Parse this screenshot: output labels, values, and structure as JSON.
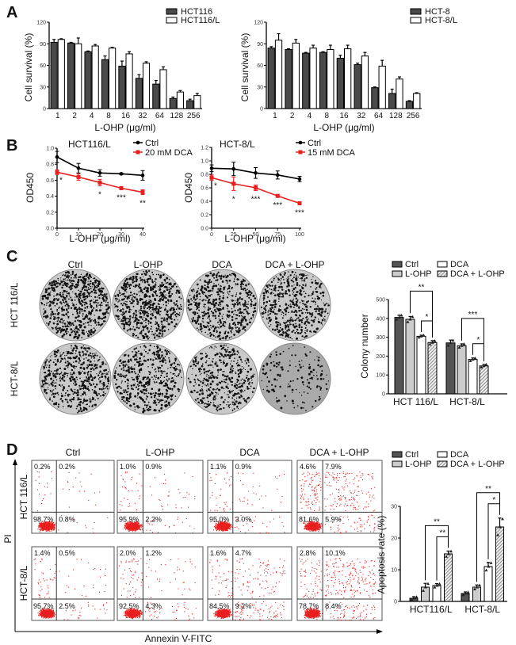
{
  "panel_labels": [
    "A",
    "B",
    "C",
    "D"
  ],
  "chart_data": [
    {
      "id": "A-left",
      "type": "bar",
      "categories": [
        "1",
        "2",
        "4",
        "8",
        "16",
        "32",
        "64",
        "128",
        "256"
      ],
      "series": [
        {
          "name": "HCT116",
          "values": [
            92,
            91,
            79,
            68,
            59,
            42,
            34,
            14,
            11
          ],
          "error": [
            4,
            1,
            1,
            5,
            7,
            5,
            5,
            2,
            2
          ],
          "color": "#4a4a4a"
        },
        {
          "name": "HCT116/L",
          "values": [
            96,
            90,
            87,
            84,
            76,
            63,
            54,
            23,
            18
          ],
          "error": [
            1,
            8,
            2,
            1,
            3,
            2,
            4,
            2,
            3
          ],
          "color": "#ffffff"
        }
      ],
      "xlabel": "L-OHP (μg/ml)",
      "ylabel": "Cell survival (%)",
      "ylim": [
        0,
        120
      ],
      "yticks": [
        0,
        30,
        60,
        90,
        120
      ],
      "legend": "top-right"
    },
    {
      "id": "A-right",
      "type": "bar",
      "categories": [
        "1",
        "2",
        "4",
        "8",
        "16",
        "32",
        "64",
        "128",
        "256"
      ],
      "series": [
        {
          "name": "HCT-8",
          "values": [
            84,
            82,
            77,
            78,
            70,
            61,
            29,
            21,
            10
          ],
          "error": [
            2,
            1,
            1,
            1,
            4,
            2,
            1,
            6,
            1
          ],
          "color": "#4a4a4a"
        },
        {
          "name": "HCT-8/L",
          "values": [
            95,
            91,
            84,
            82,
            83,
            73,
            59,
            41,
            21
          ],
          "error": [
            9,
            5,
            4,
            6,
            5,
            5,
            8,
            3,
            1
          ],
          "color": "#ffffff"
        }
      ],
      "xlabel": "L-OHP (μg/ml)",
      "ylabel": "Cell survival (%)",
      "ylim": [
        0,
        120
      ],
      "yticks": [
        0,
        30,
        60,
        90,
        120
      ],
      "legend": "top-right"
    },
    {
      "id": "B-left",
      "type": "line",
      "title": "HCT116/L",
      "x": [
        0,
        10,
        20,
        30,
        40
      ],
      "series": [
        {
          "name": "Ctrl",
          "values": [
            0.89,
            0.75,
            0.69,
            0.68,
            0.66
          ],
          "error": [
            0.07,
            0.06,
            0.04,
            0.01,
            0.06
          ],
          "color": "#000000"
        },
        {
          "name": "20 mM DCA",
          "values": [
            0.7,
            0.64,
            0.57,
            0.5,
            0.45
          ],
          "error": [
            0.03,
            0.04,
            0.04,
            0.01,
            0.03
          ],
          "color": "#e8201f"
        }
      ],
      "significance": [
        "*",
        "",
        "*",
        "***",
        "**"
      ],
      "xlabel": "L-OHP (μg/ml)",
      "ylabel": "OD450",
      "xlim": [
        0,
        40
      ],
      "ylim": [
        0,
        1.0
      ],
      "yticks": [
        "0.0",
        "0.2",
        "0.4",
        "0.6",
        "0.8",
        "1.0"
      ],
      "xticks": [
        0,
        10,
        20,
        30,
        40
      ],
      "legend": "top-right"
    },
    {
      "id": "B-right",
      "type": "line",
      "title": "HCT-8/L",
      "x": [
        0,
        25,
        50,
        75,
        100
      ],
      "series": [
        {
          "name": "Ctrl",
          "values": [
            0.89,
            0.88,
            0.82,
            0.79,
            0.73
          ],
          "error": [
            0.05,
            0.1,
            0.08,
            0.06,
            0.04
          ],
          "color": "#000000"
        },
        {
          "name": "15 mM DCA",
          "values": [
            0.75,
            0.66,
            0.6,
            0.48,
            0.37
          ],
          "error": [
            0.04,
            0.1,
            0.04,
            0.01,
            0.01
          ],
          "color": "#e8201f"
        }
      ],
      "significance": [
        "*",
        "*",
        "***",
        "***",
        "***"
      ],
      "xlabel": "L-OHP (μg/ml)",
      "ylabel": "OD450",
      "xlim": [
        0,
        100
      ],
      "ylim": [
        0,
        1.2
      ],
      "yticks": [
        "0.0",
        "0.2",
        "0.4",
        "0.6",
        "0.8",
        "1.0",
        "1.2"
      ],
      "xticks": [
        0,
        25,
        50,
        75,
        100
      ],
      "legend": "top-right"
    },
    {
      "id": "C-colony",
      "type": "bar",
      "categories": [
        "HCT 116/L",
        "HCT-8/L"
      ],
      "series": [
        {
          "name": "Ctrl",
          "values": [
            405,
            270
          ],
          "error": [
            12,
            15
          ],
          "color": "#555555"
        },
        {
          "name": "L-OHP",
          "values": [
            395,
            255
          ],
          "error": [
            15,
            10
          ],
          "color": "#cccccc"
        },
        {
          "name": "DCA",
          "values": [
            305,
            182
          ],
          "error": [
            6,
            8
          ],
          "color": "#ffffff"
        },
        {
          "name": "DCA + L-OHP",
          "values": [
            272,
            148
          ],
          "error": [
            10,
            8
          ],
          "color": "hatched"
        }
      ],
      "significance": [
        {
          "group": 0,
          "from": "L-OHP",
          "to": "DCA + L-OHP",
          "label": "**"
        },
        {
          "group": 0,
          "from": "DCA",
          "to": "DCA + L-OHP",
          "label": "*"
        },
        {
          "group": 1,
          "from": "L-OHP",
          "to": "DCA + L-OHP",
          "label": "***"
        },
        {
          "group": 1,
          "from": "DCA",
          "to": "DCA + L-OHP",
          "label": "*"
        }
      ],
      "ylabel": "Colony number",
      "ylim": [
        0,
        500
      ],
      "yticks": [
        0,
        100,
        200,
        300,
        400,
        500
      ],
      "legend": "top"
    },
    {
      "id": "D-apoptosis",
      "type": "bar",
      "categories": [
        "HCT116/L",
        "HCT-8/L"
      ],
      "series": [
        {
          "name": "Ctrl",
          "values": [
            1.0,
            2.5
          ],
          "error": [
            0.5,
            0.5
          ],
          "color": "#555555"
        },
        {
          "name": "L-OHP",
          "values": [
            4.5,
            4.5
          ],
          "error": [
            1.2,
            0.7
          ],
          "color": "#cccccc"
        },
        {
          "name": "DCA",
          "values": [
            5.0,
            11.0
          ],
          "error": [
            0.6,
            1.3
          ],
          "color": "#ffffff"
        },
        {
          "name": "DCA + L-OHP",
          "values": [
            15.0,
            23.5
          ],
          "error": [
            0.9,
            2.8
          ],
          "color": "hatched"
        }
      ],
      "significance": [
        {
          "group": 0,
          "from": "L-OHP",
          "to": "DCA + L-OHP",
          "label": "**"
        },
        {
          "group": 0,
          "from": "DCA",
          "to": "DCA + L-OHP",
          "label": "**"
        },
        {
          "group": 1,
          "from": "L-OHP",
          "to": "DCA + L-OHP",
          "label": "**"
        },
        {
          "group": 1,
          "from": "DCA",
          "to": "DCA + L-OHP",
          "label": "*"
        }
      ],
      "ylabel": "Apoptosis rate (%)",
      "ylim": [
        0,
        30
      ],
      "yticks": [
        0,
        10,
        20,
        30
      ],
      "legend": "top"
    },
    {
      "id": "D-flow",
      "type": "scatter",
      "columns": [
        "Ctrl",
        "L-OHP",
        "DCA",
        "DCA + L-OHP"
      ],
      "rows": [
        "HCT 116/L",
        "HCT-8/L"
      ],
      "xlabel": "Annexin V-FITC",
      "ylabel": "PI",
      "quadrants_order": [
        "upper-left",
        "upper-right",
        "lower-left",
        "lower-right"
      ],
      "quadrants": [
        [
          [
            "0.2%",
            "0.2%",
            "98.7%",
            "0.8%"
          ],
          [
            "1.0%",
            "0.9%",
            "95.9%",
            "2.2%"
          ],
          [
            "1.1%",
            "0.9%",
            "95.0%",
            "3.0%"
          ],
          [
            "4.6%",
            "7.9%",
            "81.6%",
            "5.9%"
          ]
        ],
        [
          [
            "1.4%",
            "0.5%",
            "95.7%",
            "2.5%"
          ],
          [
            "2.0%",
            "1.2%",
            "92.5%",
            "4.3%"
          ],
          [
            "1.6%",
            "4.7%",
            "84.5%",
            "9.2%"
          ],
          [
            "2.8%",
            "10.1%",
            "78.7%",
            "8.4%"
          ]
        ]
      ],
      "dot_color": "#e8201f"
    }
  ],
  "colony_images": {
    "columns": [
      "Ctrl",
      "L-OHP",
      "DCA",
      "DCA + L-OHP"
    ],
    "rows": [
      "HCT 116/L",
      "HCT-8/L"
    ]
  }
}
